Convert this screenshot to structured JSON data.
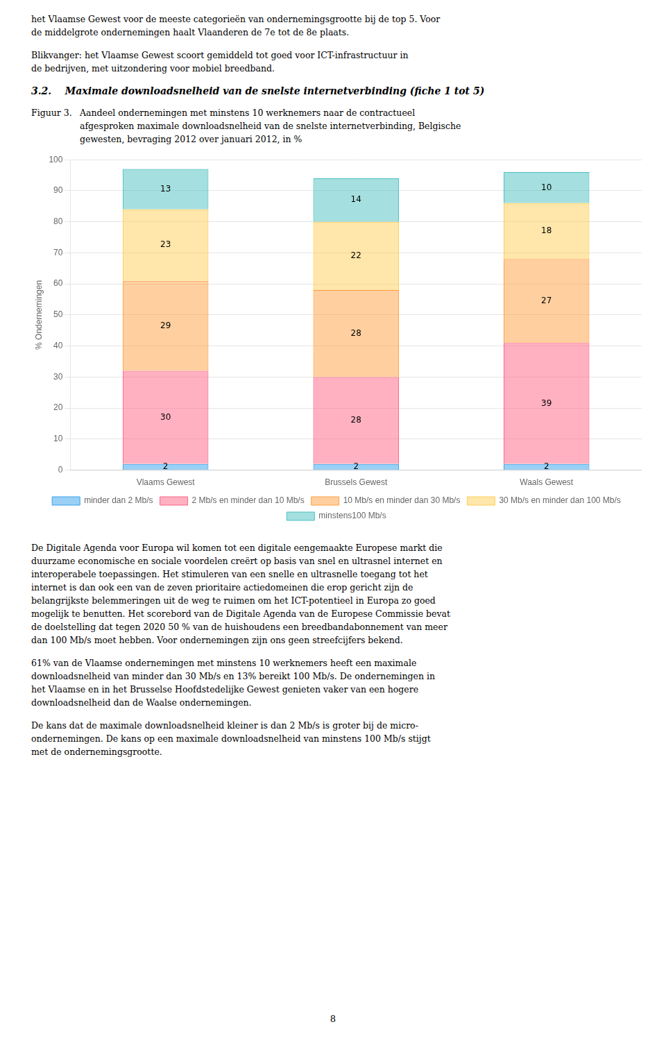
{
  "page_text": {
    "above_chart": [
      [
        "het Vlaamse Gewest voor de meeste categorieën van ondernemingsgrootte bij de top 5. Voor",
        "de middelgrote ondernemingen haalt Vlaanderen de 7e tot de 8e plaats."
      ],
      [
        "Blikvanger: het Vlaamse Gewest scoort gemiddeld tot goed voor ICT-infrastructuur in",
        "de bedrijven, met uitzondering voor mobiel breedband."
      ]
    ],
    "section_title": "3.2.    Maximale downloadsnelheid van de snelste internetverbinding (fiche 1 tot 5)",
    "figure_label": "Figuur 3.",
    "caption": [
      "Aandeel ondernemingen met minstens 10 werknemers naar de contractueel",
      "afgesproken maximale downloadsnelheid van de snelste internetverbinding, Belgische",
      "gewesten, bevraging 2012 over januari 2012, in %"
    ],
    "below_chart": [
      [
        "De Digitale Agenda voor Europa wil komen tot een digitale eengemaakte Europese markt die",
        "duurzame economische en sociale voordelen creërt op basis van snel en ultrasnel internet en",
        "interoperabele toepassingen. Het stimuleren van een snelle en ultrasnelle toegang tot het",
        "internet is dan ook een van de zeven prioritaire actiedomeinen die erop gericht zijn de",
        "belangrijkste belemmeringen uit de weg te ruimen om het ICT-potentieel in Europa zo goed",
        "mogelijk te benutten. Het scorebord van de Digitale Agenda van de Europese Commissie bevat",
        "de doelstelling dat tegen 2020 50 % van de huishoudens een breedbandabonnement van meer",
        "dan 100 Mb/s moet hebben. Voor ondernemingen zijn ons geen streefcijfers bekend."
      ],
      [
        "61% van de Vlaamse ondernemingen met minstens 10 werknemers heeft een maximale",
        "downloadsnelheid van minder dan 30 Mb/s en 13% bereikt 100 Mb/s. De ondernemingen in",
        "het Vlaamse en in het Brusselse Hoofdstedelijke Gewest genieten vaker van een hogere",
        "downloadsnelheid dan de Waalse ondernemingen."
      ],
      [
        "De kans dat de maximale downloadsnelheid kleiner is dan 2 Mb/s is groter bij de micro-",
        "ondernemingen. De kans op een maximale downloadsnelheid van minstens 100 Mb/s stijgt",
        "met de ondernemingsgrootte."
      ]
    ],
    "page_number": "8"
  },
  "chart_data": {
    "type": "bar",
    "stacked": true,
    "data_labels": true,
    "grid": true,
    "legend": "bottom",
    "ylabel": "% Ondernemingen",
    "categories": [
      "Vlaams Gewest",
      "Brussels Gewest",
      "Waals Gewest"
    ],
    "series": [
      {
        "name": "minder dan 2 Mb/s",
        "values": [
          2,
          2,
          2
        ]
      },
      {
        "name": "2 Mb/s en minder dan 10 Mb/s",
        "values": [
          30,
          28,
          39
        ]
      },
      {
        "name": "10 Mb/s en minder dan 30 Mb/s",
        "values": [
          29,
          28,
          27
        ]
      },
      {
        "name": "30 Mb/s en minder dan 100 Mb/s",
        "values": [
          23,
          22,
          18
        ]
      },
      {
        "name": "minstens100 Mb/s",
        "values": [
          13,
          14,
          10
        ]
      }
    ],
    "ylim": [
      0,
      100
    ],
    "yticks": [
      0,
      10,
      20,
      30,
      40,
      50,
      60,
      70,
      80,
      90,
      100
    ]
  }
}
